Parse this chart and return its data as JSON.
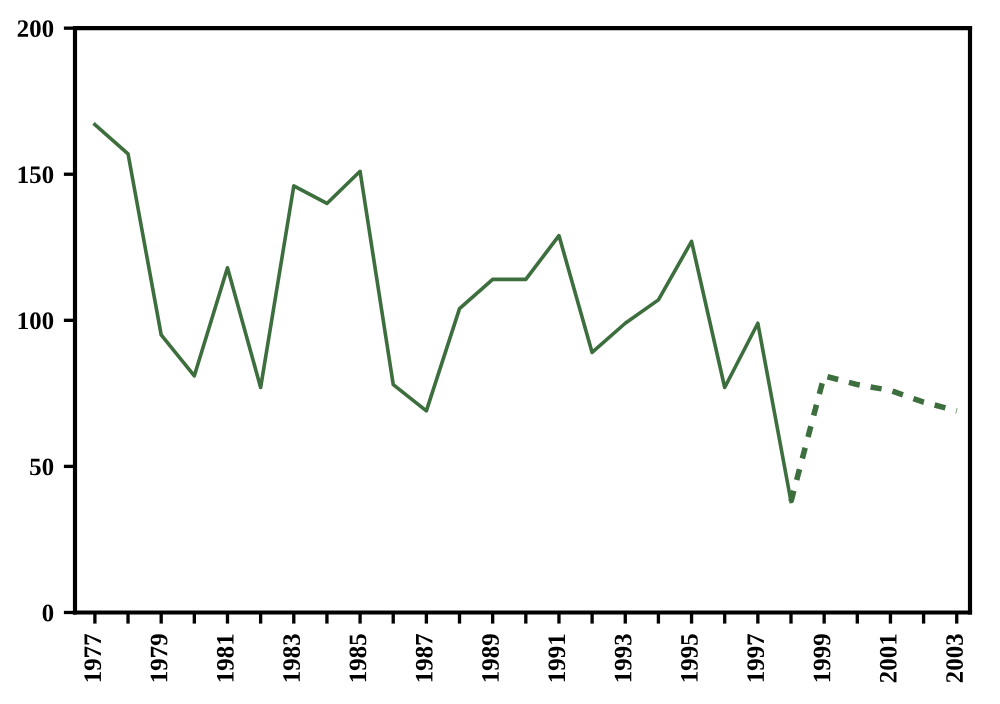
{
  "chart_data": {
    "type": "line",
    "categories": [
      "1977",
      null,
      "1979",
      null,
      "1981",
      null,
      "1983",
      null,
      "1985",
      null,
      "1987",
      null,
      "1989",
      null,
      "1991",
      null,
      "1993",
      null,
      "1995",
      null,
      "1997",
      null,
      "1999",
      null,
      "2001",
      null,
      "2003"
    ],
    "series": [
      {
        "color": "#3d6e3d",
        "line_style": "solid",
        "values": [
          167,
          157,
          95,
          81,
          118,
          77,
          146,
          140,
          151,
          78,
          69,
          104,
          114,
          114,
          129,
          89,
          99,
          107,
          127,
          77,
          99,
          38,
          null,
          null,
          null,
          null,
          null
        ]
      },
      {
        "color": "#3d6e3d",
        "line_style": "dashed",
        "values": [
          null,
          null,
          null,
          null,
          null,
          null,
          null,
          null,
          null,
          null,
          null,
          null,
          null,
          null,
          null,
          null,
          null,
          null,
          null,
          null,
          null,
          38,
          81,
          78,
          76,
          72,
          69
        ]
      }
    ],
    "ylim": [
      0,
      200
    ],
    "yticks": [
      0,
      50,
      100,
      150,
      200
    ],
    "grid": false,
    "legend": false,
    "marker": "none"
  }
}
